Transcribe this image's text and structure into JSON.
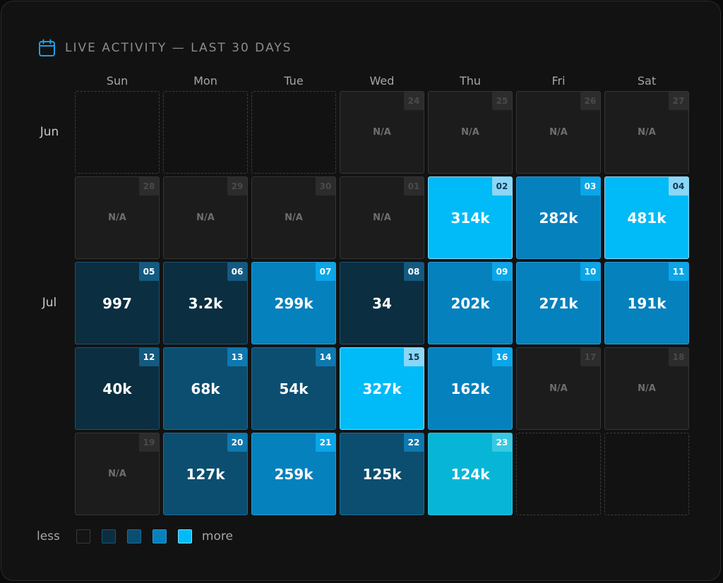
{
  "header": {
    "icon": "calendar-icon",
    "title": "LIVE ACTIVITY — LAST 30 DAYS",
    "accent": "#1ea0e8"
  },
  "weekdays": [
    "Sun",
    "Mon",
    "Tue",
    "Wed",
    "Thu",
    "Fri",
    "Sat"
  ],
  "months": [
    "Jun",
    "Jul"
  ],
  "weeks": [
    [
      {
        "type": "empty"
      },
      {
        "type": "empty"
      },
      {
        "type": "empty"
      },
      {
        "type": "na",
        "day": "24",
        "value": "N/A"
      },
      {
        "type": "na",
        "day": "25",
        "value": "N/A"
      },
      {
        "type": "na",
        "day": "26",
        "value": "N/A"
      },
      {
        "type": "na",
        "day": "27",
        "value": "N/A"
      }
    ],
    [
      {
        "type": "na",
        "day": "28",
        "value": "N/A"
      },
      {
        "type": "na",
        "day": "29",
        "value": "N/A"
      },
      {
        "type": "na",
        "day": "30",
        "value": "N/A"
      },
      {
        "type": "na",
        "day": "01",
        "value": "N/A"
      },
      {
        "type": "value",
        "day": "02",
        "value": "314k",
        "level": 4
      },
      {
        "type": "value",
        "day": "03",
        "value": "282k",
        "level": 3
      },
      {
        "type": "value",
        "day": "04",
        "value": "481k",
        "level": 4
      }
    ],
    [
      {
        "type": "value",
        "day": "05",
        "value": "997",
        "level": 1
      },
      {
        "type": "value",
        "day": "06",
        "value": "3.2k",
        "level": 1
      },
      {
        "type": "value",
        "day": "07",
        "value": "299k",
        "level": 3
      },
      {
        "type": "value",
        "day": "08",
        "value": "34",
        "level": 1
      },
      {
        "type": "value",
        "day": "09",
        "value": "202k",
        "level": 3
      },
      {
        "type": "value",
        "day": "10",
        "value": "271k",
        "level": 3
      },
      {
        "type": "value",
        "day": "11",
        "value": "191k",
        "level": 3
      }
    ],
    [
      {
        "type": "value",
        "day": "12",
        "value": "40k",
        "level": 1
      },
      {
        "type": "value",
        "day": "13",
        "value": "68k",
        "level": 2
      },
      {
        "type": "value",
        "day": "14",
        "value": "54k",
        "level": 2
      },
      {
        "type": "value",
        "day": "15",
        "value": "327k",
        "level": 4
      },
      {
        "type": "value",
        "day": "16",
        "value": "162k",
        "level": 3
      },
      {
        "type": "na",
        "day": "17",
        "value": "N/A"
      },
      {
        "type": "na",
        "day": "18",
        "value": "N/A"
      }
    ],
    [
      {
        "type": "na",
        "day": "19",
        "value": "N/A"
      },
      {
        "type": "value",
        "day": "20",
        "value": "127k",
        "level": 2
      },
      {
        "type": "value",
        "day": "21",
        "value": "259k",
        "level": 3
      },
      {
        "type": "value",
        "day": "22",
        "value": "125k",
        "level": 2
      },
      {
        "type": "value",
        "day": "23",
        "value": "124k",
        "level": "today"
      },
      {
        "type": "empty"
      },
      {
        "type": "empty"
      }
    ]
  ],
  "legend": {
    "less_label": "less",
    "more_label": "more",
    "levels": 5
  }
}
